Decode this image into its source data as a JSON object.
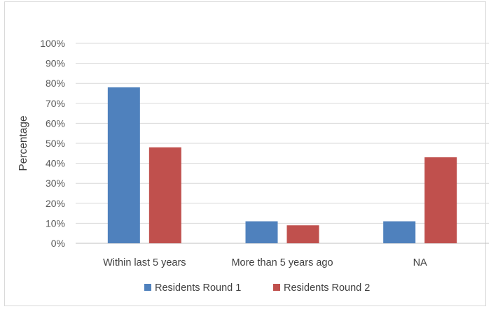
{
  "chart_data": {
    "type": "bar",
    "title": "",
    "xlabel": "",
    "ylabel": "Percentage",
    "ylim": [
      0,
      100
    ],
    "y_ticks": [
      "0%",
      "10%",
      "20%",
      "30%",
      "40%",
      "50%",
      "60%",
      "70%",
      "80%",
      "90%",
      "100%"
    ],
    "grid": true,
    "legend_position": "bottom",
    "categories": [
      "Within last 5 years",
      "More than 5 years ago",
      "NA"
    ],
    "series": [
      {
        "name": "Residents Round 1",
        "color": "#4f81bd",
        "values": [
          78,
          11,
          11
        ]
      },
      {
        "name": "Residents Round 2",
        "color": "#c0504d",
        "values": [
          48,
          9,
          43
        ]
      }
    ]
  }
}
